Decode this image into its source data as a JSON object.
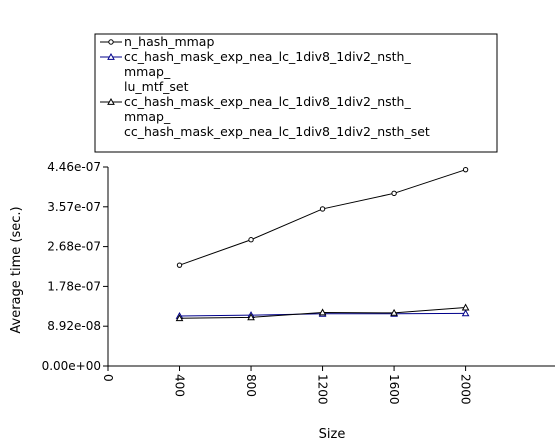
{
  "chart_data": {
    "type": "line",
    "title": "",
    "xlabel": "Size",
    "ylabel": "Average time (sec.)",
    "xlim": [
      0,
      2500
    ],
    "ylim": [
      0,
      4.46e-07
    ],
    "x_ticks": [
      "0",
      "400",
      "800",
      "1200",
      "1600",
      "2000"
    ],
    "y_ticks": [
      "0.00e+00",
      "8.92e-08",
      "1.78e-07",
      "2.68e-07",
      "3.57e-07",
      "4.46e-07"
    ],
    "grid": false,
    "legend_position": "top",
    "x": [
      400,
      800,
      1200,
      1600,
      2000
    ],
    "series": [
      {
        "name": "n_hash_mmap",
        "legend_lines": [
          "n_hash_mmap"
        ],
        "marker": "circle",
        "color": "#000000",
        "values": [
          2.26e-07,
          2.83e-07,
          3.52e-07,
          3.87e-07,
          4.4e-07
        ]
      },
      {
        "name": "cc_hash_mask_exp_nea_lc_1div8_1div2_nsth_mmap_lu_mtf_set",
        "legend_lines": [
          "cc_hash_mask_exp_nea_lc_1div8_1div2_nsth_",
          "mmap_",
          "lu_mtf_set"
        ],
        "marker": "triangle",
        "color": "#00008b",
        "values": [
          1.12e-07,
          1.14e-07,
          1.17e-07,
          1.17e-07,
          1.18e-07
        ]
      },
      {
        "name": "cc_hash_mask_exp_nea_lc_1div8_1div2_nsth_mmap_cc_hash_mask_exp_nea_lc_1div8_1div2_nsth_set",
        "legend_lines": [
          "cc_hash_mask_exp_nea_lc_1div8_1div2_nsth_",
          "mmap_",
          "cc_hash_mask_exp_nea_lc_1div8_1div2_nsth_set"
        ],
        "marker": "triangle",
        "color": "#000000",
        "values": [
          1.07e-07,
          1.09e-07,
          1.2e-07,
          1.19e-07,
          1.31e-07
        ]
      }
    ]
  }
}
